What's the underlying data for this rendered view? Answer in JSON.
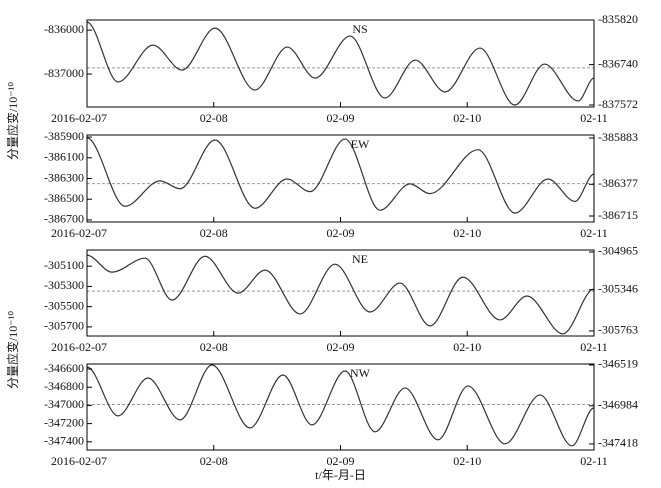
{
  "chart_data": [
    {
      "type": "line",
      "label": "NS",
      "ylabel": "分量应变/10⁻¹⁰",
      "color": "#333333",
      "x": [
        0,
        0.245,
        0.52,
        0.75,
        1.01,
        1.325,
        1.58,
        1.8,
        2.075,
        2.35,
        2.59,
        2.825,
        3.1,
        3.375,
        3.61,
        3.875,
        4
      ],
      "values": [
        -835818,
        -837182,
        -836341,
        -836909,
        -835955,
        -837364,
        -836386,
        -837091,
        -836136,
        -837545,
        -836682,
        -837409,
        -836409,
        -837705,
        -836773,
        -837614,
        -837091
      ],
      "reference_line": -836860,
      "xlim": [
        0,
        4
      ],
      "xticks": [
        {
          "value": 0,
          "label": "2016-02-07"
        },
        {
          "value": 1,
          "label": "02-08"
        },
        {
          "value": 2,
          "label": "02-09"
        },
        {
          "value": 3,
          "label": "02-10"
        },
        {
          "value": 4,
          "label": "02-11"
        }
      ],
      "ylim": [
        -837750,
        -835770
      ],
      "yticks": [
        -837000,
        -836000
      ],
      "y2lim": [
        -837613,
        -835820
      ],
      "y2ticks": [
        -837572,
        -836740,
        -835820
      ]
    },
    {
      "type": "line",
      "label": "EW",
      "color": "#333333",
      "x": [
        0,
        0.3,
        0.576,
        0.734,
        1.01,
        1.326,
        1.578,
        1.76,
        2.036,
        2.312,
        2.548,
        2.706,
        3.085,
        3.377,
        3.637,
        3.85,
        4
      ],
      "values": [
        -385909,
        -386568,
        -386323,
        -386399,
        -385928,
        -386587,
        -386305,
        -386427,
        -385919,
        -386606,
        -386352,
        -386446,
        -386022,
        -386634,
        -386305,
        -386521,
        -386258
      ],
      "reference_line": -386350,
      "xlim": [
        0,
        4
      ],
      "xticks": [
        {
          "value": 0,
          "label": "2016-02-07"
        },
        {
          "value": 1,
          "label": "02-08"
        },
        {
          "value": 2,
          "label": "02-09"
        },
        {
          "value": 3,
          "label": "02-10"
        },
        {
          "value": 4,
          "label": "02-11"
        }
      ],
      "ylim": [
        -386720,
        -385880
      ],
      "yticks": [
        -386700,
        -386500,
        -386300,
        -386100,
        -385900
      ],
      "y2lim": [
        -386779,
        -385851
      ],
      "y2ticks": [
        -386715,
        -386377,
        -385883
      ]
    },
    {
      "type": "line",
      "label": "NE",
      "ylabel": "分量应变/10⁻¹⁰",
      "color": "#333333",
      "x": [
        0,
        0.197,
        0.458,
        0.671,
        0.931,
        1.192,
        1.405,
        1.681,
        1.957,
        2.233,
        2.47,
        2.706,
        2.966,
        3.258,
        3.471,
        3.755,
        4
      ],
      "values": [
        -304992,
        -305159,
        -305021,
        -305435,
        -305002,
        -305366,
        -305139,
        -305572,
        -305080,
        -305553,
        -305267,
        -305690,
        -305208,
        -305631,
        -305395,
        -305769,
        -305326
      ],
      "reference_line": -305346,
      "xlim": [
        0,
        4
      ],
      "xticks": [
        {
          "value": 0,
          "label": "2016-02-07"
        },
        {
          "value": 1,
          "label": "02-08"
        },
        {
          "value": 2,
          "label": "02-09"
        },
        {
          "value": 3,
          "label": "02-10"
        },
        {
          "value": 4,
          "label": "02-11"
        }
      ],
      "ylim": [
        -305790,
        -304940
      ],
      "yticks": [
        -305700,
        -305500,
        -305300,
        -305100
      ],
      "y2lim": [
        -305814,
        -304945
      ],
      "y2ticks": [
        -305763,
        -305346,
        -304965
      ]
    },
    {
      "type": "line",
      "label": "NW",
      "xlabel": "t/年-月-日",
      "color": "#333333",
      "x": [
        0,
        0.245,
        0.481,
        0.734,
        0.986,
        1.286,
        1.546,
        1.775,
        2.036,
        2.272,
        2.509,
        2.769,
        3.006,
        3.298,
        3.574,
        3.826,
        4
      ],
      "values": [
        -346578,
        -347115,
        -346699,
        -347159,
        -346556,
        -347247,
        -346666,
        -347214,
        -346622,
        -347290,
        -346808,
        -347378,
        -346786,
        -347422,
        -346885,
        -347444,
        -347027
      ],
      "reference_line": -346990,
      "xlim": [
        0,
        4
      ],
      "xticks": [
        {
          "value": 0,
          "label": "2016-02-07"
        },
        {
          "value": 1,
          "label": "02-08"
        },
        {
          "value": 2,
          "label": "02-09"
        },
        {
          "value": 3,
          "label": "02-10"
        },
        {
          "value": 4,
          "label": "02-11"
        }
      ],
      "ylim": [
        -347490,
        -346545
      ],
      "yticks": [
        -347400,
        -347200,
        -347000,
        -346800,
        -346600
      ],
      "y2lim": [
        -347487,
        -346508
      ],
      "y2ticks": [
        -347418,
        -346984,
        -346519
      ]
    }
  ]
}
